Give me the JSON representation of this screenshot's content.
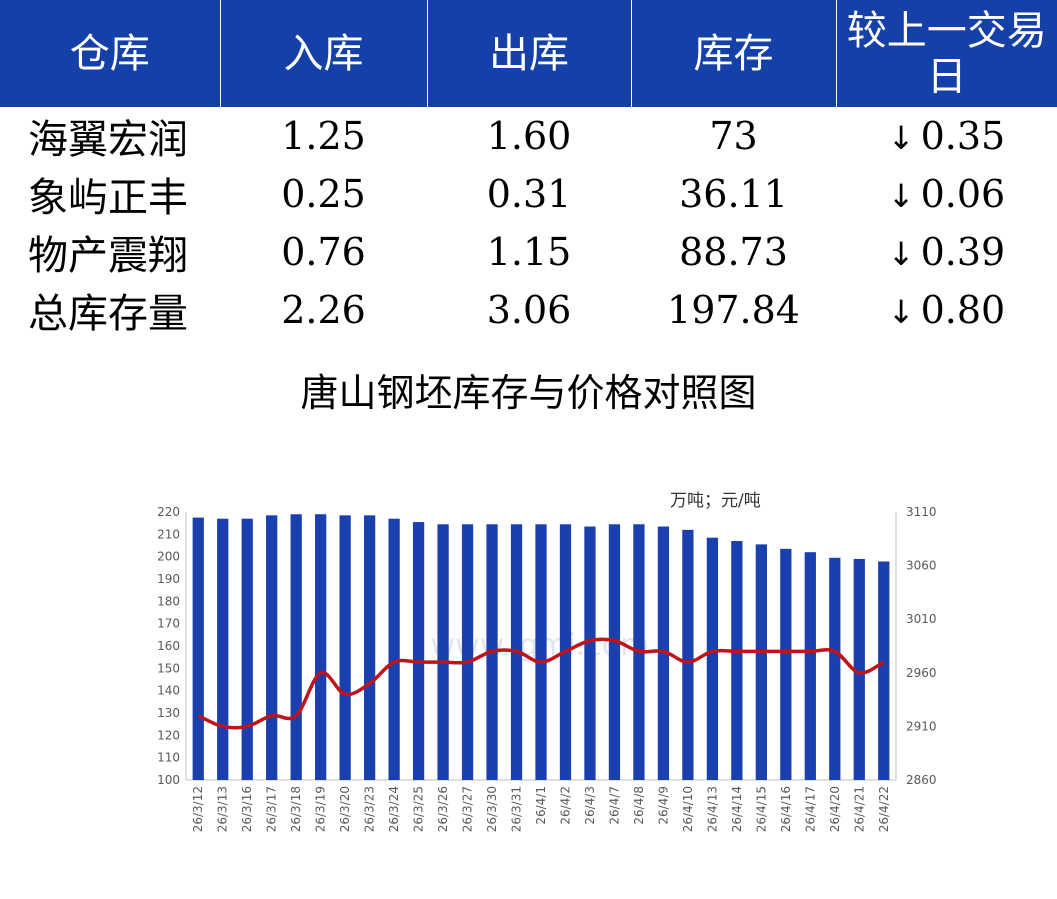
{
  "table": {
    "headers": [
      "仓库",
      "入库",
      "出库",
      "库存",
      "较上一交易日"
    ],
    "rows": [
      {
        "name": "海翼宏润",
        "in": "1.25",
        "out": "1.60",
        "stock": "73",
        "change": "0.35",
        "direction": "down"
      },
      {
        "name": "象屿正丰",
        "in": "0.25",
        "out": "0.31",
        "stock": "36.11",
        "change": "0.06",
        "direction": "down"
      },
      {
        "name": "物产震翔",
        "in": "0.76",
        "out": "1.15",
        "stock": "88.73",
        "change": "0.39",
        "direction": "down"
      },
      {
        "name": "总库存量",
        "in": "2.26",
        "out": "3.06",
        "stock": "197.84",
        "change": "0.80",
        "direction": "down"
      }
    ],
    "header_color": "#1440a8",
    "change_color": "#137a13",
    "down_arrow": "↓"
  },
  "chart_data": {
    "type": "bar",
    "title": "唐山钢坯库存与价格对照图",
    "unit_label": "万吨；元/吨",
    "categories": [
      "26/3/12",
      "26/3/13",
      "26/3/16",
      "26/3/17",
      "26/3/18",
      "26/3/19",
      "26/3/20",
      "26/3/23",
      "26/3/24",
      "26/3/25",
      "26/3/26",
      "26/3/27",
      "26/3/30",
      "26/3/31",
      "26/4/1",
      "26/4/2",
      "26/4/3",
      "26/4/7",
      "26/4/8",
      "26/4/9",
      "26/4/10",
      "26/4/13",
      "26/4/14",
      "26/4/15",
      "26/4/16",
      "26/4/17",
      "26/4/20",
      "26/4/21",
      "26/4/22"
    ],
    "series": [
      {
        "type": "bar",
        "axis": "left",
        "color": "#1a3fae",
        "values": [
          217.5,
          217,
          217,
          218.5,
          219,
          219,
          218.5,
          218.5,
          217,
          215.5,
          214.5,
          214.5,
          214.5,
          214.5,
          214.5,
          214.5,
          213.5,
          214.5,
          214.5,
          213.5,
          212,
          208.5,
          207,
          205.5,
          203.5,
          202,
          199.5,
          199,
          197.84
        ]
      },
      {
        "type": "line",
        "axis": "right",
        "color": "#c0141c",
        "values": [
          2920,
          2910,
          2910,
          2920,
          2920,
          2960,
          2940,
          2950,
          2970,
          2970,
          2970,
          2970,
          2980,
          2980,
          2970,
          2980,
          2990,
          2990,
          2980,
          2980,
          2970,
          2980,
          2980,
          2980,
          2980,
          2980,
          2980,
          2960,
          2970
        ]
      }
    ],
    "y_left": {
      "min": 100,
      "max": 220,
      "step": 10
    },
    "y_right": {
      "min": 2860,
      "max": 3110,
      "ticks": [
        2860,
        2910,
        2960,
        3010,
        3060,
        3110
      ]
    },
    "watermark": "www.lgmi.com"
  }
}
